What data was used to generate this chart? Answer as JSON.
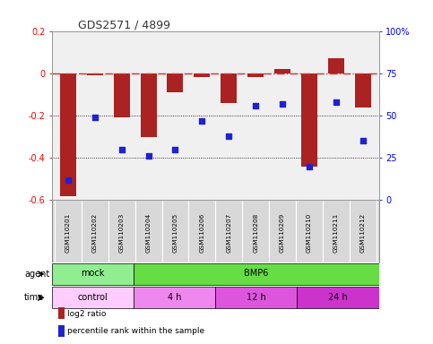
{
  "title": "GDS2571 / 4899",
  "samples": [
    "GSM110201",
    "GSM110202",
    "GSM110203",
    "GSM110204",
    "GSM110205",
    "GSM110206",
    "GSM110207",
    "GSM110208",
    "GSM110209",
    "GSM110210",
    "GSM110211",
    "GSM110212"
  ],
  "log2_ratio": [
    -0.58,
    -0.01,
    -0.21,
    -0.3,
    -0.09,
    -0.02,
    -0.14,
    -0.02,
    0.02,
    -0.44,
    0.07,
    -0.16
  ],
  "percentile": [
    12,
    49,
    30,
    26,
    30,
    47,
    38,
    56,
    57,
    20,
    58,
    35
  ],
  "bar_color": "#aa2222",
  "dot_color": "#2222cc",
  "refline_color": "#cc3333",
  "ylim_left": [
    -0.6,
    0.2
  ],
  "ylim_right": [
    0,
    100
  ],
  "yticks_left": [
    -0.6,
    -0.4,
    -0.2,
    0.0,
    0.2
  ],
  "yticks_right": [
    0,
    25,
    50,
    75,
    100
  ],
  "agent_labels": [
    {
      "text": "mock",
      "start": 0,
      "end": 2,
      "color": "#90ee90"
    },
    {
      "text": "BMP6",
      "start": 3,
      "end": 11,
      "color": "#66dd44"
    }
  ],
  "time_labels": [
    {
      "text": "control",
      "start": 0,
      "end": 2,
      "color": "#ffccff"
    },
    {
      "text": "4 h",
      "start": 3,
      "end": 5,
      "color": "#ee88ee"
    },
    {
      "text": "12 h",
      "start": 6,
      "end": 8,
      "color": "#dd55dd"
    },
    {
      "text": "24 h",
      "start": 9,
      "end": 11,
      "color": "#cc33cc"
    }
  ],
  "legend_items": [
    {
      "label": "log2 ratio",
      "color": "#aa2222"
    },
    {
      "label": "percentile rank within the sample",
      "color": "#2222cc"
    }
  ],
  "agent_label": "agent",
  "time_label": "time",
  "bg_color": "#ffffff",
  "plot_bg_color": "#f0f0f0",
  "xlabel_bg": "#d8d8d8"
}
